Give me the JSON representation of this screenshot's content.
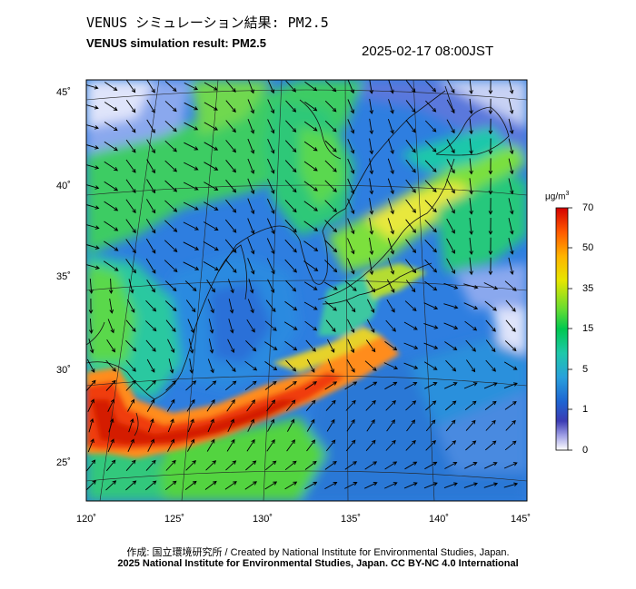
{
  "title_jp": "VENUS シミュレーション結果: PM2.5",
  "title_en": "VENUS simulation result: PM2.5",
  "datetime": "2025-02-17 08:00JST",
  "map": {
    "lon_ticks": [
      "120˚",
      "125˚",
      "130˚",
      "135˚",
      "140˚",
      "145˚"
    ],
    "lat_ticks": [
      "45˚",
      "40˚",
      "35˚",
      "30˚",
      "25˚"
    ],
    "lon_values": [
      120,
      125,
      130,
      135,
      140,
      145
    ],
    "lat_values": [
      45,
      40,
      35,
      30,
      25
    ],
    "lon_range": [
      120,
      145
    ],
    "lat_range": [
      23,
      46
    ]
  },
  "colorbar": {
    "unit_main": "μg/m",
    "unit_sup": "3",
    "labels": [
      "70",
      "50",
      "35",
      "15",
      "5",
      "1",
      "0"
    ],
    "colors": [
      "#d40000",
      "#ff5a00",
      "#ffb400",
      "#e6e600",
      "#64dc32",
      "#00c850",
      "#1ec8aa",
      "#28a0dc",
      "#1e64d2",
      "#3c3cb4",
      "#a0a0e6",
      "#ffffff"
    ]
  },
  "credits": {
    "line1": "作成: 国立環境研究所 / Created by National Institute for Environmental Studies, Japan.",
    "line2": "2025 National Institute for Environmental Studies, Japan. CC BY-NC 4.0 International"
  }
}
